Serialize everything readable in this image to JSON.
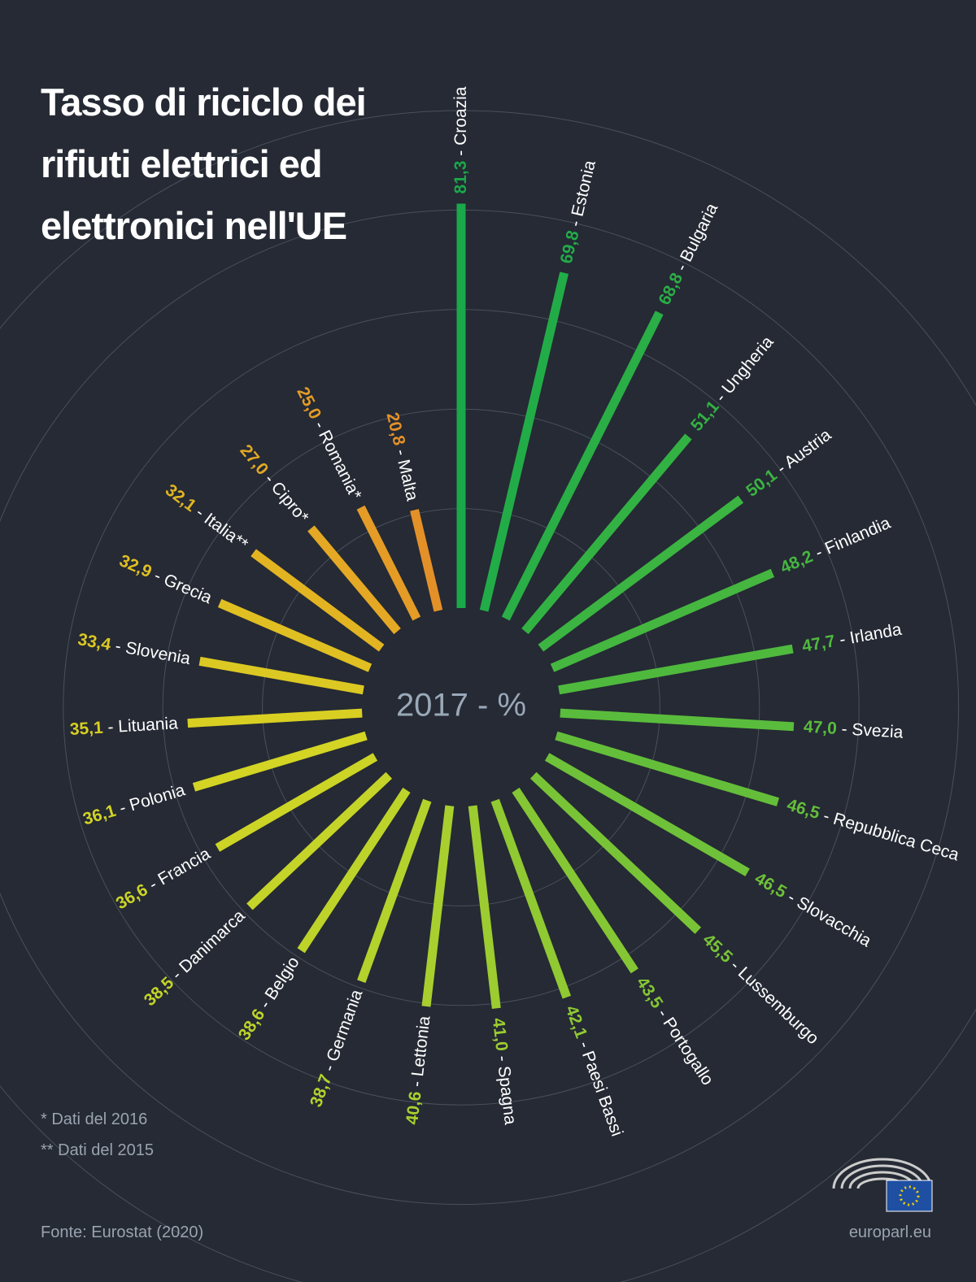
{
  "chart_data": {
    "type": "radial-bar",
    "title": "Tasso di riciclo dei rifiuti elettrici ed elettronici nell'UE",
    "subtitle": "2017 - %",
    "label_separator": " - ",
    "categories": [
      "Croazia",
      "Estonia",
      "Bulgaria",
      "Ungheria",
      "Austria",
      "Finlandia",
      "Irlanda",
      "Svezia",
      "Repubblica Ceca",
      "Slovacchia",
      "Lussemburgo",
      "Portogallo",
      "Paesi Bassi",
      "Spagna",
      "Lettonia",
      "Germania",
      "Belgio",
      "Danimarca",
      "Francia",
      "Polonia",
      "Lituania",
      "Slovenia",
      "Grecia",
      "Italia**",
      "Cipro*",
      "Romania*",
      "Malta"
    ],
    "values": [
      81.3,
      69.8,
      68.8,
      51.1,
      50.1,
      48.2,
      47.7,
      47.0,
      46.5,
      46.5,
      45.5,
      43.5,
      42.1,
      41.0,
      40.6,
      38.7,
      38.6,
      38.5,
      36.6,
      36.1,
      35.1,
      33.4,
      32.9,
      32.1,
      27.0,
      25.0,
      20.8
    ],
    "value_labels": [
      "81,3",
      "69,8",
      "68,8",
      "51,1",
      "50,1",
      "48,2",
      "47,7",
      "47,0",
      "46,5",
      "46,5",
      "45,5",
      "43,5",
      "42,1",
      "41,0",
      "40,6",
      "38,7",
      "38,6",
      "38,5",
      "36,6",
      "36,1",
      "35,1",
      "33,4",
      "32,9",
      "32,1",
      "27,0",
      "25,0",
      "20,8"
    ],
    "colors": [
      "#1aa84a",
      "#22ac48",
      "#2aae46",
      "#33b244",
      "#3bb442",
      "#45b640",
      "#4fb93e",
      "#5abc3c",
      "#64be3a",
      "#6ec138",
      "#78c436",
      "#84c634",
      "#90c932",
      "#9ccc30",
      "#a8cf2e",
      "#b4d22c",
      "#bdd32a",
      "#c5d428",
      "#ccd426",
      "#d3d424",
      "#d8cf22",
      "#dcc822",
      "#e0bf22",
      "#e2b422",
      "#e4a824",
      "#e49c26",
      "#e49028"
    ],
    "rlim": [
      0,
      100
    ],
    "rticks": [
      20,
      40,
      60,
      80,
      100
    ]
  },
  "footnotes": [
    "* Dati del 2016",
    "** Dati del 2015"
  ],
  "source": "Fonte: Eurostat (2020)",
  "website": "europarl.eu"
}
